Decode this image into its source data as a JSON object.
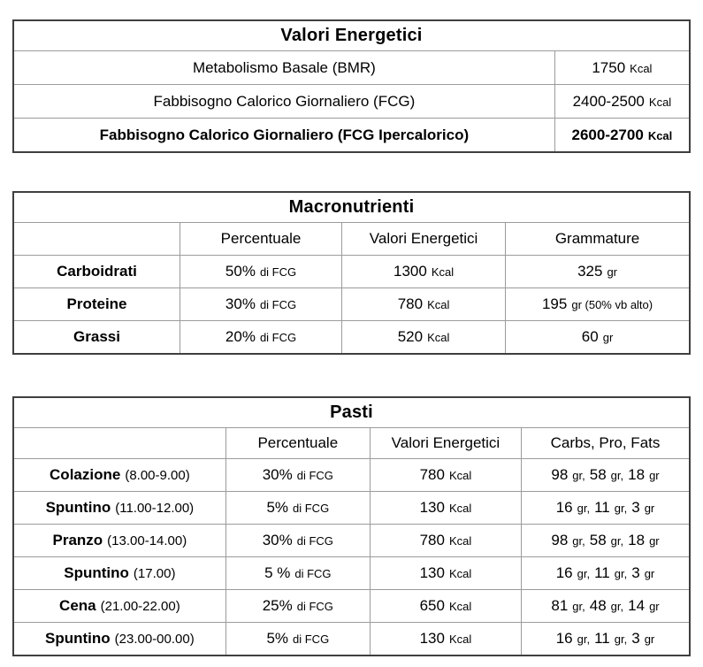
{
  "colors": {
    "background": "#ffffff",
    "text": "#000000",
    "border_outer": "#3f3f3f",
    "border_inner": "#9b9b9b"
  },
  "t1": {
    "title": "Valori Energetici",
    "rows": [
      {
        "bold": false,
        "cells": [
          [
            [
              "Metabolismo Basale (BMR)",
              "text"
            ]
          ],
          [
            [
              "1750",
              "text"
            ],
            [
              "Kcal",
              "unit"
            ]
          ]
        ]
      },
      {
        "bold": false,
        "cells": [
          [
            [
              "Fabbisogno Calorico Giornaliero (FCG)",
              "text"
            ]
          ],
          [
            [
              "2400-2500",
              "text"
            ],
            [
              "Kcal",
              "unit"
            ]
          ]
        ]
      },
      {
        "bold": true,
        "cells": [
          [
            [
              "Fabbisogno Calorico Giornaliero (FCG Ipercalorico)",
              "text"
            ]
          ],
          [
            [
              "2600-2700",
              "text"
            ],
            [
              "Kcal",
              "unit"
            ]
          ]
        ]
      }
    ]
  },
  "t2": {
    "title": "Macronutrienti",
    "headers": [
      "",
      "Percentuale",
      "Valori Energetici",
      "Grammature"
    ],
    "rows": [
      {
        "cells": [
          [
            [
              "Carboidrati",
              "name"
            ]
          ],
          [
            [
              "50%",
              "text"
            ],
            [
              "di FCG",
              "unit"
            ]
          ],
          [
            [
              "1300",
              "text"
            ],
            [
              "Kcal",
              "unit"
            ]
          ],
          [
            [
              "325",
              "text"
            ],
            [
              "gr",
              "unit"
            ]
          ]
        ]
      },
      {
        "cells": [
          [
            [
              "Proteine",
              "name"
            ]
          ],
          [
            [
              "30%",
              "text"
            ],
            [
              "di FCG",
              "unit"
            ]
          ],
          [
            [
              "780",
              "text"
            ],
            [
              "Kcal",
              "unit"
            ]
          ],
          [
            [
              "195",
              "text"
            ],
            [
              "gr (50% vb alto)",
              "unit"
            ]
          ]
        ]
      },
      {
        "cells": [
          [
            [
              "Grassi",
              "name"
            ]
          ],
          [
            [
              "20%",
              "text"
            ],
            [
              "di FCG",
              "unit"
            ]
          ],
          [
            [
              "520",
              "text"
            ],
            [
              "Kcal",
              "unit"
            ]
          ],
          [
            [
              "60",
              "text"
            ],
            [
              "gr",
              "unit"
            ]
          ]
        ]
      }
    ]
  },
  "t3": {
    "title": "Pasti",
    "headers": [
      "",
      "Percentuale",
      "Valori Energetici",
      "Carbs, Pro, Fats"
    ],
    "rows": [
      {
        "cells": [
          [
            [
              "Colazione",
              "name"
            ],
            [
              "(8.00-9.00)",
              "time"
            ]
          ],
          [
            [
              "30%",
              "text"
            ],
            [
              "di FCG",
              "unit"
            ]
          ],
          [
            [
              "780",
              "text"
            ],
            [
              "Kcal",
              "unit"
            ]
          ],
          [
            [
              "98",
              "text"
            ],
            [
              "gr,",
              "unit"
            ],
            [
              "58",
              "text"
            ],
            [
              "gr,",
              "unit"
            ],
            [
              "18",
              "text"
            ],
            [
              "gr",
              "unit"
            ]
          ]
        ]
      },
      {
        "cells": [
          [
            [
              "Spuntino",
              "name"
            ],
            [
              "(11.00-12.00)",
              "time"
            ]
          ],
          [
            [
              "5%",
              "text"
            ],
            [
              "di FCG",
              "unit"
            ]
          ],
          [
            [
              "130",
              "text"
            ],
            [
              "Kcal",
              "unit"
            ]
          ],
          [
            [
              "16",
              "text"
            ],
            [
              "gr,",
              "unit"
            ],
            [
              "11",
              "text"
            ],
            [
              "gr,",
              "unit"
            ],
            [
              "3",
              "text"
            ],
            [
              "gr",
              "unit"
            ]
          ]
        ]
      },
      {
        "cells": [
          [
            [
              "Pranzo",
              "name"
            ],
            [
              "(13.00-14.00)",
              "time"
            ]
          ],
          [
            [
              "30%",
              "text"
            ],
            [
              "di FCG",
              "unit"
            ]
          ],
          [
            [
              "780",
              "text"
            ],
            [
              "Kcal",
              "unit"
            ]
          ],
          [
            [
              "98",
              "text"
            ],
            [
              "gr,",
              "unit"
            ],
            [
              "58",
              "text"
            ],
            [
              "gr,",
              "unit"
            ],
            [
              "18",
              "text"
            ],
            [
              "gr",
              "unit"
            ]
          ]
        ]
      },
      {
        "cells": [
          [
            [
              "Spuntino",
              "name"
            ],
            [
              "(17.00)",
              "time"
            ]
          ],
          [
            [
              "5 %",
              "text"
            ],
            [
              "di FCG",
              "unit"
            ]
          ],
          [
            [
              "130",
              "text"
            ],
            [
              "Kcal",
              "unit"
            ]
          ],
          [
            [
              "16",
              "text"
            ],
            [
              "gr,",
              "unit"
            ],
            [
              "11",
              "text"
            ],
            [
              "gr,",
              "unit"
            ],
            [
              "3",
              "text"
            ],
            [
              "gr",
              "unit"
            ]
          ]
        ]
      },
      {
        "cells": [
          [
            [
              "Cena",
              "name"
            ],
            [
              "(21.00-22.00)",
              "time"
            ]
          ],
          [
            [
              "25%",
              "text"
            ],
            [
              "di FCG",
              "unit"
            ]
          ],
          [
            [
              "650",
              "text"
            ],
            [
              "Kcal",
              "unit"
            ]
          ],
          [
            [
              "81",
              "text"
            ],
            [
              "gr,",
              "unit"
            ],
            [
              "48",
              "text"
            ],
            [
              "gr,",
              "unit"
            ],
            [
              "14",
              "text"
            ],
            [
              "gr",
              "unit"
            ]
          ]
        ]
      },
      {
        "cells": [
          [
            [
              "Spuntino",
              "name"
            ],
            [
              "(23.00-00.00)",
              "time"
            ]
          ],
          [
            [
              "5%",
              "text"
            ],
            [
              "di FCG",
              "unit"
            ]
          ],
          [
            [
              "130",
              "text"
            ],
            [
              "Kcal",
              "unit"
            ]
          ],
          [
            [
              "16",
              "text"
            ],
            [
              "gr,",
              "unit"
            ],
            [
              "11",
              "text"
            ],
            [
              "gr,",
              "unit"
            ],
            [
              "3",
              "text"
            ],
            [
              "gr",
              "unit"
            ]
          ]
        ]
      }
    ]
  }
}
